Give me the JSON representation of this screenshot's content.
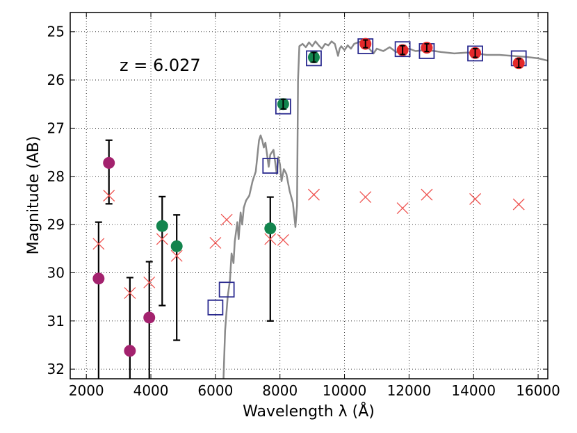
{
  "chart_data": {
    "type": "scatter",
    "title": "",
    "xlabel": "Wavelength  λ (Å)",
    "ylabel": "Magnitude (AB)",
    "xlim": [
      1500,
      16300
    ],
    "ylim": [
      32.2,
      24.6
    ],
    "y_inverted": true,
    "grid": true,
    "grid_style": "dotted",
    "xticks": [
      2000,
      4000,
      6000,
      8000,
      10000,
      12000,
      14000,
      16000
    ],
    "yticks": [
      25,
      26,
      27,
      28,
      29,
      30,
      31,
      32
    ],
    "annotation": "z = 6.027",
    "colors": {
      "magenta": "#a3226e",
      "green": "#12844d",
      "red": "#e4282a",
      "model_cross": "#ef5350",
      "model_box": "#2a2a8f",
      "spectrum": "#8a8a8a",
      "errorbar": "#000000"
    },
    "series": [
      {
        "marker": "circle",
        "color": "magenta",
        "points": [
          {
            "x": 2380,
            "y": 30.12,
            "yerr_low": 28.95,
            "yerr_high": 32.3
          },
          {
            "x": 2700,
            "y": 27.72,
            "yerr_low": 27.25,
            "yerr_high": 28.57
          },
          {
            "x": 3350,
            "y": 31.62,
            "yerr_low": 30.1,
            "yerr_high": 32.3
          },
          {
            "x": 3950,
            "y": 30.93,
            "yerr_low": 29.77,
            "yerr_high": 32.3
          }
        ]
      },
      {
        "marker": "circle",
        "color": "green",
        "points": [
          {
            "x": 4350,
            "y": 29.03,
            "yerr_low": 28.42,
            "yerr_high": 30.68
          },
          {
            "x": 4800,
            "y": 29.45,
            "yerr_low": 28.8,
            "yerr_high": 31.4
          },
          {
            "x": 7700,
            "y": 29.08,
            "yerr_low": 28.43,
            "yerr_high": 31.0
          },
          {
            "x": 8100,
            "y": 26.5,
            "yerr_low": 26.4,
            "yerr_high": 26.6
          },
          {
            "x": 9050,
            "y": 25.53,
            "yerr_low": 25.43,
            "yerr_high": 25.63
          }
        ]
      },
      {
        "marker": "circle",
        "color": "red",
        "points": [
          {
            "x": 10650,
            "y": 25.25,
            "yerr_low": 25.17,
            "yerr_high": 25.33
          },
          {
            "x": 11800,
            "y": 25.38,
            "yerr_low": 25.29,
            "yerr_high": 25.47
          },
          {
            "x": 12550,
            "y": 25.33,
            "yerr_low": 25.25,
            "yerr_high": 25.41
          },
          {
            "x": 14050,
            "y": 25.44,
            "yerr_low": 25.35,
            "yerr_high": 25.53
          },
          {
            "x": 15400,
            "y": 25.65,
            "yerr_low": 25.56,
            "yerr_high": 25.74
          }
        ]
      },
      {
        "marker": "x",
        "color": "model_cross",
        "points": [
          {
            "x": 2380,
            "y": 29.4
          },
          {
            "x": 2700,
            "y": 28.4
          },
          {
            "x": 3350,
            "y": 30.42
          },
          {
            "x": 3950,
            "y": 30.2
          },
          {
            "x": 4350,
            "y": 29.3
          },
          {
            "x": 4800,
            "y": 29.65
          },
          {
            "x": 6000,
            "y": 29.38
          },
          {
            "x": 6350,
            "y": 28.9
          },
          {
            "x": 7700,
            "y": 29.3
          },
          {
            "x": 8100,
            "y": 29.32
          },
          {
            "x": 9050,
            "y": 28.38
          },
          {
            "x": 10650,
            "y": 28.43
          },
          {
            "x": 11800,
            "y": 28.66
          },
          {
            "x": 12550,
            "y": 28.38
          },
          {
            "x": 14050,
            "y": 28.47
          },
          {
            "x": 15400,
            "y": 28.58
          }
        ]
      },
      {
        "marker": "square",
        "color": "model_box",
        "points": [
          {
            "x": 6000,
            "y": 30.72
          },
          {
            "x": 6350,
            "y": 30.35
          },
          {
            "x": 7700,
            "y": 27.78
          },
          {
            "x": 8100,
            "y": 26.55
          },
          {
            "x": 9050,
            "y": 25.55
          },
          {
            "x": 10650,
            "y": 25.3
          },
          {
            "x": 11800,
            "y": 25.36
          },
          {
            "x": 12550,
            "y": 25.4
          },
          {
            "x": 14050,
            "y": 25.45
          },
          {
            "x": 15400,
            "y": 25.55
          }
        ]
      }
    ],
    "spectrum": {
      "color": "spectrum",
      "points": [
        [
          6250,
          32.3
        ],
        [
          6300,
          31.2
        ],
        [
          6380,
          30.5
        ],
        [
          6450,
          30.15
        ],
        [
          6500,
          29.6
        ],
        [
          6560,
          29.8
        ],
        [
          6600,
          29.35
        ],
        [
          6680,
          28.95
        ],
        [
          6720,
          29.3
        ],
        [
          6780,
          28.75
        ],
        [
          6830,
          29.0
        ],
        [
          6880,
          28.65
        ],
        [
          6950,
          28.5
        ],
        [
          7050,
          28.4
        ],
        [
          7150,
          28.1
        ],
        [
          7250,
          27.9
        ],
        [
          7350,
          27.25
        ],
        [
          7400,
          27.15
        ],
        [
          7450,
          27.25
        ],
        [
          7500,
          27.4
        ],
        [
          7550,
          27.3
        ],
        [
          7600,
          27.55
        ],
        [
          7650,
          27.8
        ],
        [
          7700,
          27.55
        ],
        [
          7800,
          27.45
        ],
        [
          7850,
          27.7
        ],
        [
          7900,
          27.95
        ],
        [
          7950,
          27.6
        ],
        [
          8000,
          27.75
        ],
        [
          8050,
          28.1
        ],
        [
          8120,
          27.85
        ],
        [
          8200,
          27.95
        ],
        [
          8300,
          28.3
        ],
        [
          8400,
          28.55
        ],
        [
          8480,
          29.05
        ],
        [
          8530,
          28.6
        ],
        [
          8560,
          26.0
        ],
        [
          8600,
          25.3
        ],
        [
          8700,
          25.25
        ],
        [
          8800,
          25.32
        ],
        [
          8900,
          25.22
        ],
        [
          9000,
          25.3
        ],
        [
          9100,
          25.2
        ],
        [
          9200,
          25.28
        ],
        [
          9300,
          25.35
        ],
        [
          9400,
          25.25
        ],
        [
          9500,
          25.28
        ],
        [
          9600,
          25.2
        ],
        [
          9700,
          25.25
        ],
        [
          9800,
          25.5
        ],
        [
          9850,
          25.35
        ],
        [
          9900,
          25.3
        ],
        [
          10000,
          25.38
        ],
        [
          10100,
          25.28
        ],
        [
          10200,
          25.35
        ],
        [
          10300,
          25.25
        ],
        [
          10500,
          25.2
        ],
        [
          10700,
          25.3
        ],
        [
          10900,
          25.45
        ],
        [
          11000,
          25.35
        ],
        [
          11200,
          25.4
        ],
        [
          11400,
          25.32
        ],
        [
          11600,
          25.42
        ],
        [
          11800,
          25.38
        ],
        [
          12000,
          25.35
        ],
        [
          12200,
          25.4
        ],
        [
          12500,
          25.38
        ],
        [
          12800,
          25.4
        ],
        [
          13000,
          25.42
        ],
        [
          13400,
          25.45
        ],
        [
          13800,
          25.43
        ],
        [
          14100,
          25.45
        ],
        [
          14400,
          25.48
        ],
        [
          14800,
          25.48
        ],
        [
          15200,
          25.5
        ],
        [
          15600,
          25.52
        ],
        [
          16000,
          25.55
        ],
        [
          16300,
          25.6
        ]
      ]
    }
  }
}
